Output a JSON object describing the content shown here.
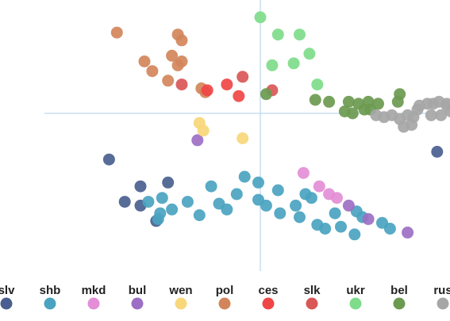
{
  "chart_data": {
    "type": "scatter",
    "title": "",
    "xlabel": "",
    "ylabel": "",
    "xlim": [
      -5.5,
      4.75
    ],
    "ylim": [
      -3.6,
      2.8
    ],
    "grid": false,
    "legend_position": "bottom",
    "series": [
      {
        "name": "slv",
        "color": "#4a5f8f",
        "points": [
          [
            -3.85,
            -1.2
          ],
          [
            -3.05,
            -2.4
          ],
          [
            -2.65,
            -2.8
          ],
          [
            -2.35,
            -1.8
          ],
          [
            -3.45,
            -2.3
          ],
          [
            -3.05,
            -1.9
          ],
          [
            4.5,
            -1.0
          ]
        ]
      },
      {
        "name": "shb",
        "color": "#4aa3c0",
        "points": [
          [
            -2.85,
            -2.3
          ],
          [
            -2.6,
            -2.75
          ],
          [
            -2.55,
            -2.6
          ],
          [
            -2.25,
            -2.5
          ],
          [
            -2.5,
            -2.2
          ],
          [
            -1.85,
            -2.3
          ],
          [
            -1.55,
            -2.65
          ],
          [
            -1.25,
            -1.9
          ],
          [
            -1.05,
            -2.35
          ],
          [
            -0.85,
            -2.5
          ],
          [
            -0.6,
            -2.1
          ],
          [
            -0.4,
            -1.65
          ],
          [
            -0.05,
            -1.8
          ],
          [
            -0.05,
            -2.25
          ],
          [
            0.15,
            -2.4
          ],
          [
            0.45,
            -2.0
          ],
          [
            0.5,
            -2.6
          ],
          [
            0.9,
            -2.4
          ],
          [
            1.15,
            -2.1
          ],
          [
            1.3,
            -2.2
          ],
          [
            1.0,
            -2.7
          ],
          [
            1.45,
            -2.9
          ],
          [
            1.65,
            -3.0
          ],
          [
            1.9,
            -2.6
          ],
          [
            2.05,
            -2.95
          ],
          [
            2.4,
            -3.15
          ],
          [
            2.45,
            -2.55
          ],
          [
            2.6,
            -2.7
          ],
          [
            3.1,
            -2.85
          ],
          [
            3.3,
            -3.0
          ]
        ]
      },
      {
        "name": "mkd",
        "color": "#e38ed6",
        "points": [
          [
            1.1,
            -1.55
          ],
          [
            1.5,
            -1.9
          ],
          [
            1.75,
            -2.1
          ],
          [
            1.95,
            -2.2
          ]
        ]
      },
      {
        "name": "bul",
        "color": "#9c6fc4",
        "points": [
          [
            -1.6,
            -0.7
          ],
          [
            2.25,
            -2.4
          ],
          [
            2.75,
            -2.75
          ],
          [
            3.75,
            -3.1
          ]
        ]
      },
      {
        "name": "wen",
        "color": "#f7d77a",
        "points": [
          [
            -1.55,
            -0.25
          ],
          [
            -1.45,
            -0.45
          ],
          [
            -0.45,
            -0.65
          ]
        ]
      },
      {
        "name": "pol",
        "color": "#d2855a",
        "points": [
          [
            -3.65,
            2.1
          ],
          [
            -2.1,
            2.05
          ],
          [
            -2.0,
            1.9
          ],
          [
            -2.25,
            1.5
          ],
          [
            -2.95,
            1.35
          ],
          [
            -2.75,
            1.1
          ],
          [
            -2.1,
            1.25
          ],
          [
            -2.0,
            1.35
          ],
          [
            -2.35,
            0.85
          ],
          [
            -1.5,
            0.65
          ],
          [
            -1.4,
            0.55
          ]
        ]
      },
      {
        "name": "ces",
        "color": "#f04545",
        "points": [
          [
            -1.35,
            0.6
          ],
          [
            -0.85,
            0.75
          ],
          [
            -0.55,
            0.45
          ]
        ]
      },
      {
        "name": "slk",
        "color": "#d95757",
        "points": [
          [
            -2.0,
            0.75
          ],
          [
            -0.45,
            0.95
          ],
          [
            0.3,
            0.6
          ]
        ]
      },
      {
        "name": "ukr",
        "color": "#7edc8a",
        "points": [
          [
            0.0,
            2.5
          ],
          [
            0.45,
            2.05
          ],
          [
            1.0,
            2.05
          ],
          [
            1.25,
            1.55
          ],
          [
            0.85,
            1.3
          ],
          [
            0.3,
            1.25
          ],
          [
            1.45,
            0.75
          ]
        ]
      },
      {
        "name": "bel",
        "color": "#6b9a50",
        "points": [
          [
            0.15,
            0.5
          ],
          [
            1.4,
            0.35
          ],
          [
            1.75,
            0.3
          ],
          [
            2.25,
            0.3
          ],
          [
            2.5,
            0.25
          ],
          [
            2.75,
            0.3
          ],
          [
            3.0,
            0.25
          ],
          [
            2.8,
            0.1
          ],
          [
            2.65,
            0.1
          ],
          [
            2.35,
            0.0
          ],
          [
            2.15,
            0.05
          ],
          [
            3.55,
            0.5
          ],
          [
            3.5,
            0.3
          ]
        ]
      },
      {
        "name": "rus",
        "color": "#a6a6a6",
        "points": [
          [
            2.95,
            -0.05
          ],
          [
            3.15,
            -0.1
          ],
          [
            3.35,
            -0.05
          ],
          [
            3.55,
            -0.15
          ],
          [
            3.75,
            -0.05
          ],
          [
            3.9,
            -0.1
          ],
          [
            4.0,
            0.1
          ],
          [
            4.05,
            0.2
          ],
          [
            4.25,
            0.25
          ],
          [
            4.4,
            0.25
          ],
          [
            4.55,
            0.3
          ],
          [
            4.75,
            0.2
          ],
          [
            5.0,
            0.1
          ],
          [
            3.85,
            -0.3
          ],
          [
            4.35,
            -0.05
          ],
          [
            4.6,
            -0.05
          ],
          [
            4.85,
            0.05
          ],
          [
            3.65,
            -0.35
          ],
          [
            4.75,
            0.25
          ]
        ]
      }
    ]
  }
}
